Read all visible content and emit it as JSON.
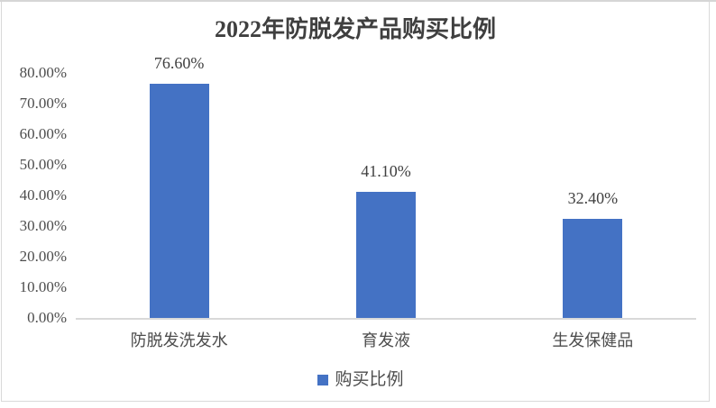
{
  "chart_data": {
    "type": "bar",
    "title": "2022年防脱发产品购买比例",
    "categories": [
      "防脱发洗发水",
      "育发液",
      "生发保健品"
    ],
    "values": [
      76.6,
      41.1,
      32.4
    ],
    "value_labels": [
      "76.60%",
      "41.10%",
      "32.40%"
    ],
    "series": [
      {
        "name": "购买比例",
        "values": [
          76.6,
          41.1,
          32.4
        ]
      }
    ],
    "legend_label": "购买比例",
    "ylabel": "",
    "xlabel": "",
    "ylim": [
      0,
      80
    ],
    "y_ticks": [
      "0.00%",
      "10.00%",
      "20.00%",
      "30.00%",
      "40.00%",
      "50.00%",
      "60.00%",
      "70.00%",
      "80.00%"
    ],
    "grid": false,
    "legend_position": "bottom",
    "bar_color": "#4472c4",
    "axis_label_color": "#4d4d4d",
    "axis_line_color": "#d9d9d9"
  }
}
